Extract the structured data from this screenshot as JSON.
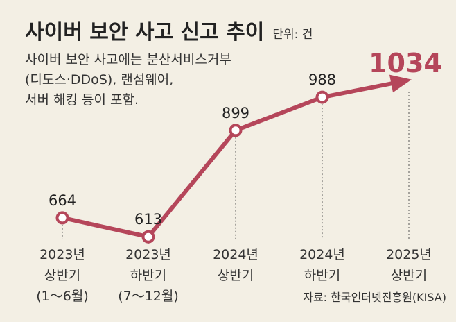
{
  "chart_data": {
    "type": "line",
    "title": "사이버 보안 사고 신고 추이",
    "unit_label": "단위: 건",
    "note_lines": [
      "사이버 보안 사고에는 분산서비스거부",
      "(디도스·DDoS), 랜섬웨어,",
      "서버 해킹 등이 포함."
    ],
    "categories": [
      [
        "2023년",
        "상반기",
        "(1～6월)"
      ],
      [
        "2023년",
        "하반기",
        "(7～12월)"
      ],
      [
        "2024년",
        "상반기"
      ],
      [
        "2024년",
        "하반기"
      ],
      [
        "2025년",
        "상반기"
      ]
    ],
    "values": [
      664,
      613,
      899,
      988,
      1034
    ],
    "value_labels": [
      "664",
      "613",
      "899",
      "988",
      "1034"
    ],
    "ylim": [
      550,
      1100
    ],
    "line_color": "#b5465a",
    "highlight_color": "#b5465a",
    "source": "자료: 한국인터넷진흥원(KISA)"
  }
}
